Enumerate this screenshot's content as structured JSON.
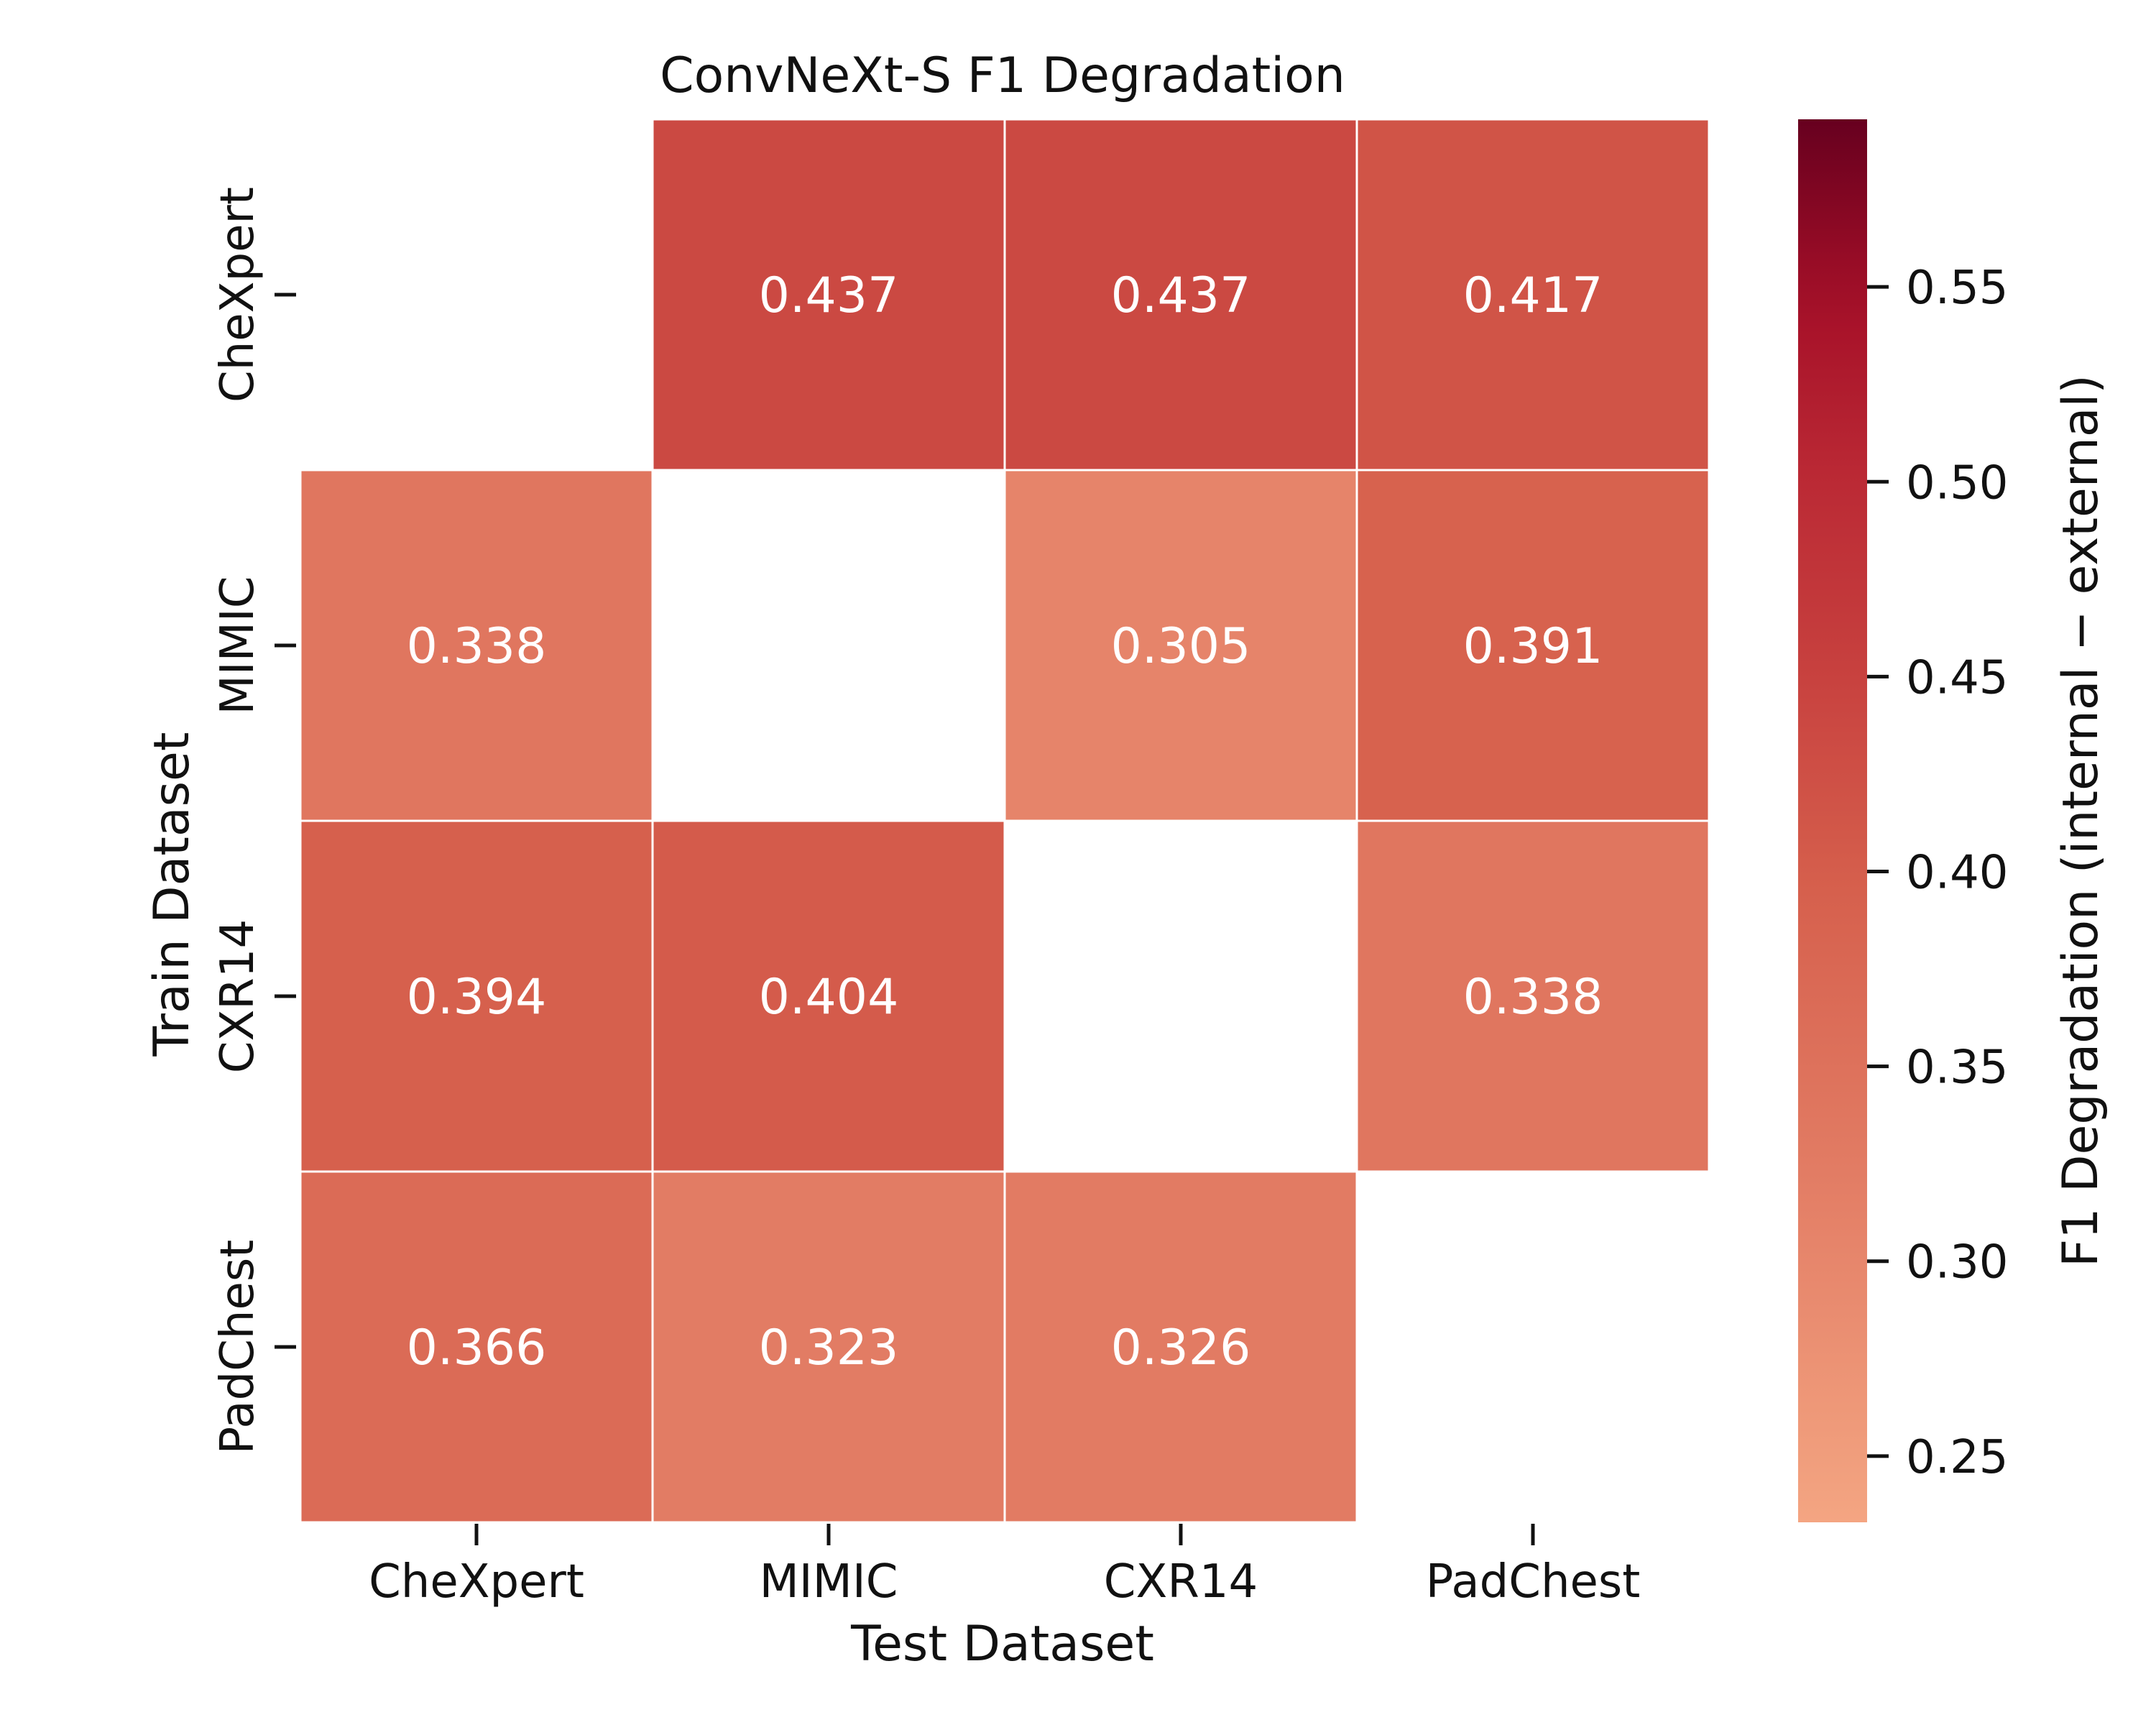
{
  "chart_data": {
    "type": "heatmap",
    "title": "ConvNeXt-S F1 Degradation",
    "xlabel": "Test Dataset",
    "ylabel": "Train Dataset",
    "x_categories": [
      "CheXpert",
      "MIMIC",
      "CXR14",
      "PadChest"
    ],
    "y_categories": [
      "CheXpert",
      "MIMIC",
      "CXR14",
      "PadChest"
    ],
    "values": [
      [
        null,
        0.437,
        0.437,
        0.417
      ],
      [
        0.338,
        null,
        0.305,
        0.391
      ],
      [
        0.394,
        0.404,
        null,
        0.338
      ],
      [
        0.366,
        0.323,
        0.326,
        null
      ]
    ],
    "value_labels": [
      [
        "",
        "0.437",
        "0.437",
        "0.417"
      ],
      [
        "0.338",
        "",
        "0.305",
        "0.391"
      ],
      [
        "0.394",
        "0.404",
        "",
        "0.338"
      ],
      [
        "0.366",
        "0.323",
        "0.326",
        ""
      ]
    ],
    "colorbar": {
      "label": "F1 Degradation (internal − external)",
      "range": [
        0.233,
        0.593
      ],
      "ticks": [
        0.25,
        0.3,
        0.35,
        0.4,
        0.45,
        0.5,
        0.55
      ],
      "tick_labels": [
        "0.25",
        "0.30",
        "0.35",
        "0.40",
        "0.45",
        "0.50",
        "0.55"
      ],
      "colormap": "Reds",
      "color_low": "#f4a582",
      "color_high": "#67001f"
    },
    "cell_text_color": "#ffffff",
    "diagonal": "empty"
  }
}
